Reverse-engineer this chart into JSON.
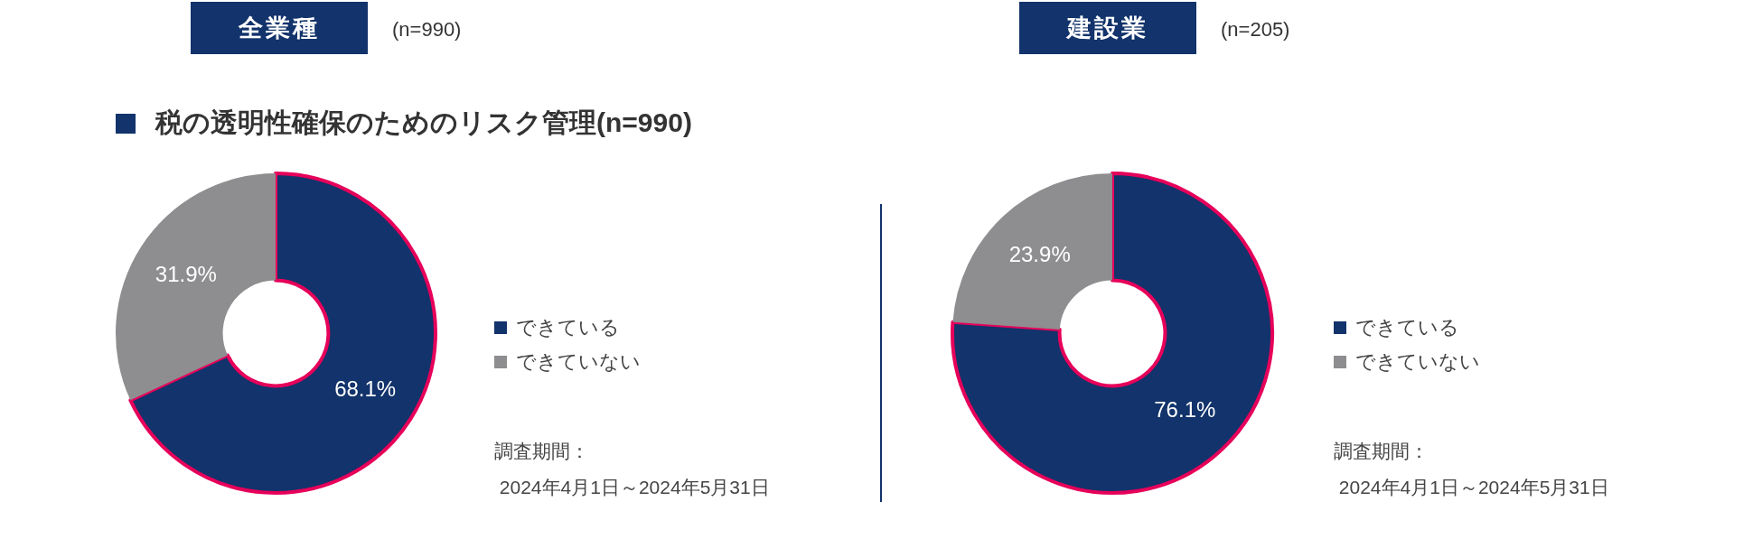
{
  "chart_data": [
    {
      "type": "donut",
      "title": "全業種",
      "subtitle": "税の透明性確保のためのリスク管理(n=990)",
      "categories": [
        "できている",
        "できていない"
      ],
      "values": [
        68.1,
        31.9
      ],
      "colors": [
        "#12336b",
        "#8e8d8f"
      ],
      "value_labels": [
        "68.1%",
        "31.9%"
      ],
      "legend": "right",
      "annotations": [
        "(n=990)",
        "調査期間：\n 2024年4月1日～2024年5月31日"
      ]
    },
    {
      "type": "donut",
      "title": "建設業",
      "categories": [
        "できている",
        "できていない"
      ],
      "values": [
        76.1,
        23.9
      ],
      "colors": [
        "#12336b",
        "#8e8d8f"
      ],
      "value_labels": [
        "76.1%",
        "23.9%"
      ],
      "legend": "right",
      "annotations": [
        "(n=205)",
        "調査期間：\n 2024年4月1日～2024年5月31日"
      ]
    }
  ]
}
